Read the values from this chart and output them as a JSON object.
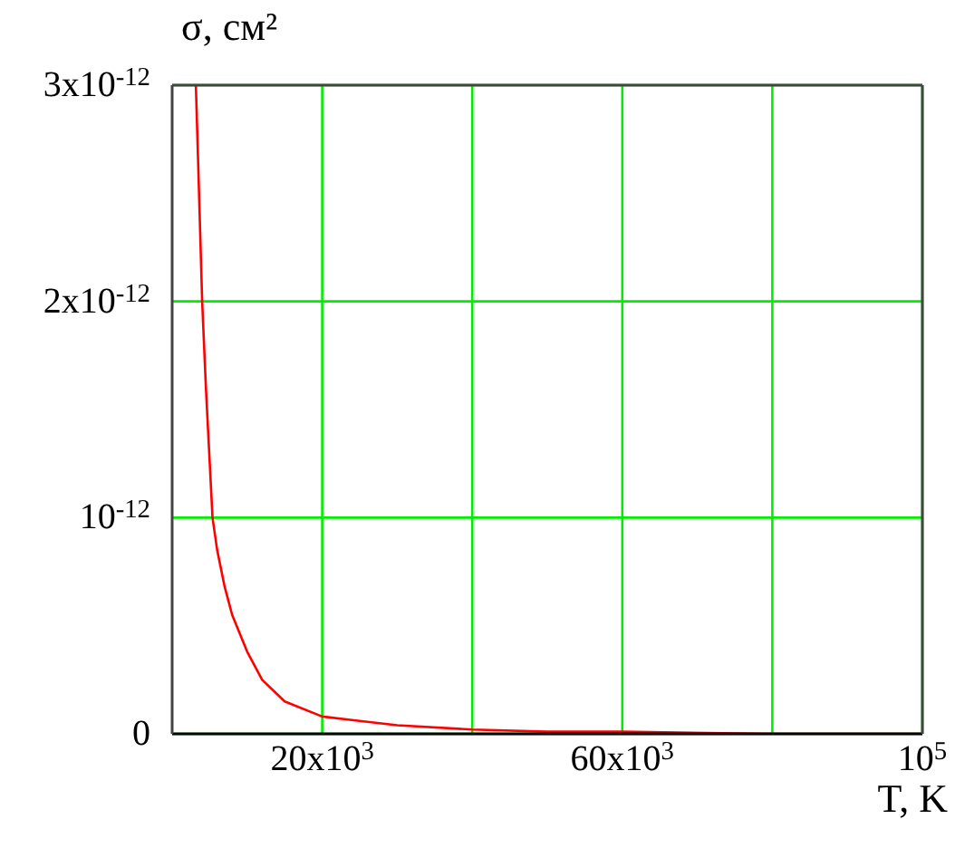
{
  "chart_data": {
    "type": "line",
    "ylabel": "σ, см²",
    "xlabel": "T, K",
    "x": [
      3160,
      3500,
      4000,
      4500,
      5380,
      6000,
      7000,
      8000,
      10000,
      12000,
      15000,
      20000,
      25000,
      30000,
      40000,
      50000,
      60000,
      80000,
      100000
    ],
    "series": [
      {
        "color": "#ff0000",
        "values": [
          3e-12,
          2.6e-12,
          2e-12,
          1.6e-12,
          1e-12,
          8.5e-13,
          6.8e-13,
          5.5e-13,
          3.8e-13,
          2.5e-13,
          1.5e-13,
          8e-14,
          6e-14,
          4e-14,
          2e-14,
          1e-14,
          1e-14,
          0,
          0
        ]
      }
    ],
    "xlim": [
      0,
      100000
    ],
    "xticks": [
      {
        "value": 20000,
        "label": "20x10$^{3}$"
      },
      {
        "value": 40000,
        "label": null
      },
      {
        "value": 60000,
        "label": "60x10$^{3}$"
      },
      {
        "value": 80000,
        "label": null
      },
      {
        "value": 100000,
        "label": "10$^{5}$"
      }
    ],
    "ylim": [
      0,
      3e-12
    ],
    "yticks": [
      0,
      {
        "value": 1e-12,
        "label": "10$^{-12}$"
      },
      {
        "value": 2e-12,
        "label": "2x10$^{-12}$"
      },
      {
        "value": 3e-12,
        "label": "3x10$^{-12}$"
      }
    ],
    "grid": true,
    "line_style": "solid",
    "marker": "none",
    "legend": false
  }
}
